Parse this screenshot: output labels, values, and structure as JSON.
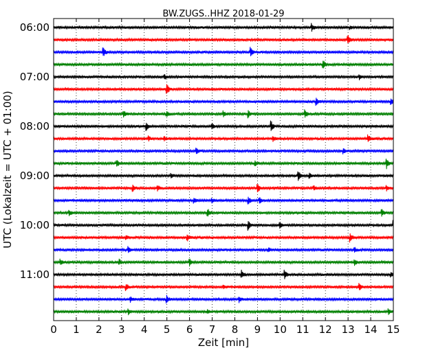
{
  "chart_data": {
    "type": "line",
    "title": "BW.ZUGS..HHZ 2018-01-29",
    "xlabel": "Zeit  [min]",
    "ylabel": "UTC (Lokalzeit = UTC + 01:00)",
    "xlim": [
      0,
      15
    ],
    "x_ticks": [
      "0",
      "1",
      "2",
      "3",
      "4",
      "5",
      "6",
      "7",
      "8",
      "9",
      "10",
      "11",
      "12",
      "13",
      "14",
      "15"
    ],
    "y_ticks": [
      "06:00",
      "07:00",
      "08:00",
      "09:00",
      "10:00",
      "11:00"
    ],
    "grid": "vertical dotted",
    "trace_colors": [
      "#000000",
      "#ff0000",
      "#0000ff",
      "#008000"
    ],
    "trace_start_times": [
      "06:00",
      "06:15",
      "06:30",
      "06:45",
      "07:00",
      "07:15",
      "07:30",
      "07:45",
      "08:00",
      "08:15",
      "08:30",
      "08:45",
      "09:00",
      "09:15",
      "09:30",
      "09:45",
      "10:00",
      "10:15",
      "10:30",
      "10:45",
      "11:00",
      "11:15",
      "11:30",
      "11:45"
    ],
    "series": [
      {
        "values": [
          [
            11.4,
            0.8
          ],
          [
            13.1,
            0.3
          ]
        ]
      },
      {
        "values": [
          [
            13.0,
            0.9
          ]
        ]
      },
      {
        "values": [
          [
            2.2,
            1.0
          ],
          [
            8.7,
            1.0
          ]
        ]
      },
      {
        "values": [
          [
            11.9,
            1.0
          ]
        ]
      },
      {
        "values": [
          [
            4.9,
            0.5
          ],
          [
            13.5,
            0.5
          ]
        ]
      },
      {
        "values": [
          [
            5.0,
            1.2
          ]
        ]
      },
      {
        "values": [
          [
            11.6,
            0.7
          ],
          [
            14.9,
            0.6
          ]
        ]
      },
      {
        "values": [
          [
            3.1,
            0.7
          ],
          [
            5.0,
            0.5
          ],
          [
            7.5,
            0.6
          ],
          [
            8.6,
            0.8
          ],
          [
            11.1,
            1.0
          ]
        ]
      },
      {
        "values": [
          [
            4.1,
            0.8
          ],
          [
            7.0,
            0.6
          ],
          [
            9.6,
            1.2
          ]
        ]
      },
      {
        "values": [
          [
            4.2,
            0.5
          ],
          [
            4.9,
            0.4
          ],
          [
            9.7,
            0.5
          ],
          [
            13.9,
            0.8
          ]
        ]
      },
      {
        "values": [
          [
            6.3,
            0.7
          ],
          [
            12.8,
            0.5
          ]
        ]
      },
      {
        "values": [
          [
            2.8,
            0.7
          ],
          [
            8.9,
            0.6
          ],
          [
            14.7,
            1.0
          ]
        ]
      },
      {
        "values": [
          [
            5.2,
            0.4
          ],
          [
            10.8,
            1.2
          ],
          [
            11.3,
            0.5
          ]
        ]
      },
      {
        "values": [
          [
            3.5,
            0.8
          ],
          [
            4.6,
            0.6
          ],
          [
            9.0,
            1.0
          ],
          [
            11.5,
            0.4
          ],
          [
            14.7,
            0.5
          ]
        ]
      },
      {
        "values": [
          [
            6.2,
            0.5
          ],
          [
            7.0,
            0.4
          ],
          [
            8.6,
            0.9
          ],
          [
            9.1,
            0.6
          ]
        ]
      },
      {
        "values": [
          [
            0.7,
            0.6
          ],
          [
            6.8,
            0.9
          ],
          [
            14.5,
            0.7
          ]
        ]
      },
      {
        "values": [
          [
            8.6,
            1.0
          ],
          [
            10.0,
            0.5
          ],
          [
            15.0,
            0.9
          ]
        ]
      },
      {
        "values": [
          [
            3.2,
            0.5
          ],
          [
            5.9,
            0.8
          ],
          [
            13.1,
            0.9
          ]
        ]
      },
      {
        "values": [
          [
            3.3,
            0.6
          ],
          [
            9.5,
            0.5
          ],
          [
            13.3,
            0.5
          ]
        ]
      },
      {
        "values": [
          [
            0.3,
            0.6
          ],
          [
            2.9,
            0.6
          ],
          [
            6.0,
            0.8
          ],
          [
            13.3,
            0.6
          ]
        ]
      },
      {
        "values": [
          [
            8.3,
            0.8
          ],
          [
            10.2,
            0.9
          ],
          [
            14.9,
            0.5
          ]
        ]
      },
      {
        "values": [
          [
            3.2,
            0.7
          ],
          [
            7.5,
            0.5
          ],
          [
            13.5,
            0.8
          ]
        ]
      },
      {
        "values": [
          [
            3.4,
            0.6
          ],
          [
            5.0,
            0.7
          ],
          [
            8.2,
            0.6
          ]
        ]
      },
      {
        "values": [
          [
            3.3,
            0.6
          ],
          [
            6.8,
            0.4
          ],
          [
            14.8,
            0.5
          ]
        ]
      }
    ]
  }
}
